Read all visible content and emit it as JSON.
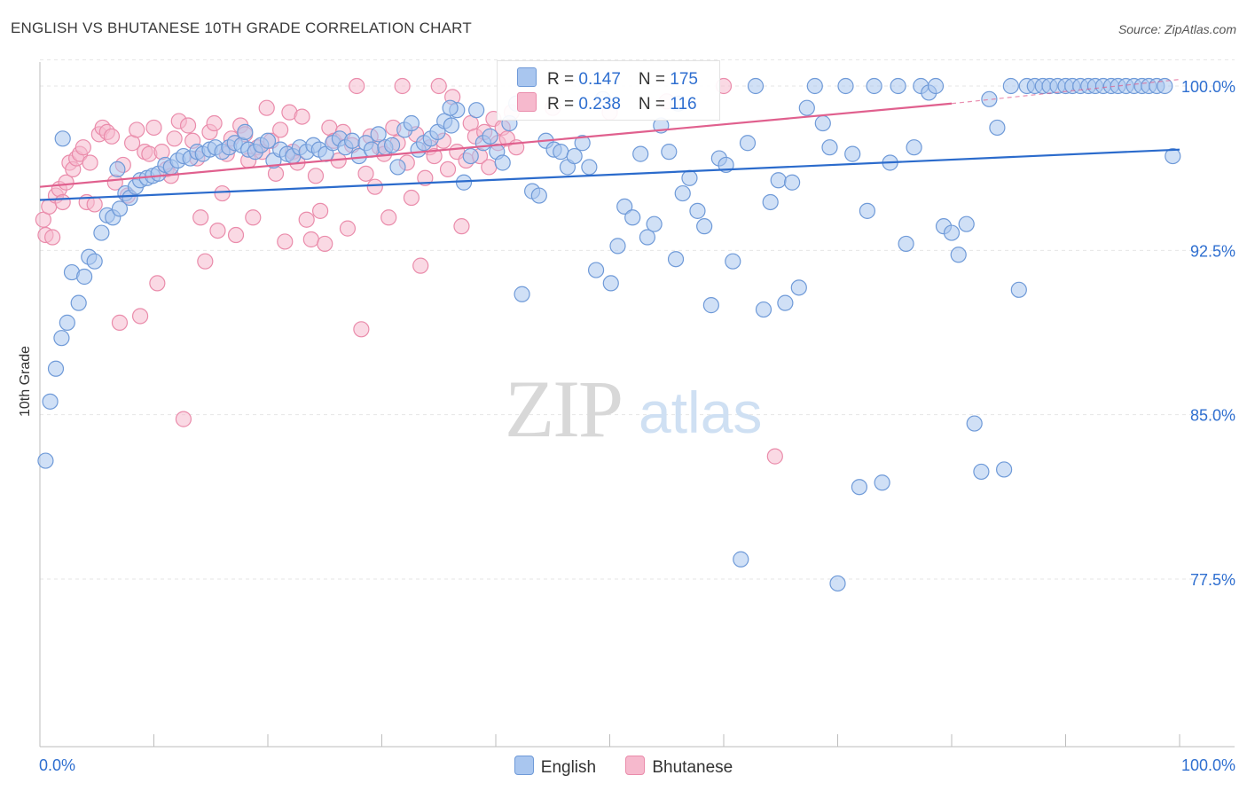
{
  "title": "ENGLISH VS BHUTANESE 10TH GRADE CORRELATION CHART",
  "source": "Source: ZipAtlas.com",
  "watermark": {
    "zip": "ZIP",
    "atlas": "atlas"
  },
  "colors": {
    "english_fill": "#a9c6ef",
    "english_stroke": "#6f9ad8",
    "english_line": "#2b6bcc",
    "bhutanese_fill": "#f6b9cd",
    "bhutanese_stroke": "#ea8cab",
    "bhutanese_line": "#e0608e",
    "axis_label": "#2f6fd0"
  },
  "legend_box": {
    "english": {
      "r_label": "R = ",
      "r_value": "0.147",
      "n_label": "N = ",
      "n_value": "175"
    },
    "bhutanese": {
      "r_label": "R = ",
      "r_value": "0.238",
      "n_label": "N = ",
      "n_value": "116"
    }
  },
  "legend": {
    "english": "English",
    "bhutanese": "Bhutanese"
  },
  "chart_data": {
    "type": "scatter",
    "title": "ENGLISH VS BHUTANESE 10TH GRADE CORRELATION CHART",
    "xlabel": "",
    "ylabel": "10th Grade",
    "xlim": [
      0,
      100
    ],
    "ylim": [
      70.0,
      101.5
    ],
    "x_tick_labels": [
      "0.0%",
      "100.0%"
    ],
    "y_ticks": [
      77.5,
      85.0,
      92.5,
      100.0
    ],
    "y_tick_labels": [
      "77.5%",
      "85.0%",
      "92.5%",
      "100.0%"
    ],
    "grid": true,
    "series": [
      {
        "name": "English",
        "r": 0.147,
        "n": 175,
        "trend": {
          "x": [
            0,
            100
          ],
          "y": [
            94.8,
            97.1
          ]
        },
        "points": [
          [
            0.5,
            82.9
          ],
          [
            0.9,
            85.6
          ],
          [
            1.4,
            87.1
          ],
          [
            1.9,
            88.5
          ],
          [
            2.4,
            89.2
          ],
          [
            2.8,
            91.5
          ],
          [
            3.4,
            90.1
          ],
          [
            3.9,
            91.3
          ],
          [
            4.3,
            92.2
          ],
          [
            4.8,
            92.0
          ],
          [
            5.4,
            93.3
          ],
          [
            5.9,
            94.1
          ],
          [
            6.4,
            94.0
          ],
          [
            7.0,
            94.4
          ],
          [
            7.5,
            95.1
          ],
          [
            7.9,
            94.9
          ],
          [
            8.4,
            95.4
          ],
          [
            8.8,
            95.7
          ],
          [
            9.4,
            95.8
          ],
          [
            9.9,
            95.9
          ],
          [
            10.4,
            96.0
          ],
          [
            11.0,
            96.4
          ],
          [
            11.5,
            96.3
          ],
          [
            12.1,
            96.6
          ],
          [
            12.6,
            96.8
          ],
          [
            13.2,
            96.7
          ],
          [
            13.8,
            97.0
          ],
          [
            14.3,
            96.9
          ],
          [
            14.9,
            97.1
          ],
          [
            15.4,
            97.2
          ],
          [
            16.0,
            97.0
          ],
          [
            16.6,
            97.2
          ],
          [
            17.1,
            97.4
          ],
          [
            17.7,
            97.3
          ],
          [
            18.3,
            97.1
          ],
          [
            18.9,
            97.0
          ],
          [
            19.4,
            97.3
          ],
          [
            20.0,
            97.5
          ],
          [
            20.5,
            96.6
          ],
          [
            21.1,
            97.1
          ],
          [
            21.7,
            96.9
          ],
          [
            22.2,
            96.8
          ],
          [
            22.8,
            97.2
          ],
          [
            23.4,
            97.0
          ],
          [
            24.0,
            97.3
          ],
          [
            24.5,
            97.1
          ],
          [
            25.1,
            96.9
          ],
          [
            25.7,
            97.4
          ],
          [
            26.3,
            97.6
          ],
          [
            26.8,
            97.2
          ],
          [
            27.4,
            97.5
          ],
          [
            28.0,
            96.8
          ],
          [
            28.6,
            97.4
          ],
          [
            29.1,
            97.1
          ],
          [
            29.7,
            97.8
          ],
          [
            30.3,
            97.2
          ],
          [
            30.9,
            97.3
          ],
          [
            31.4,
            96.3
          ],
          [
            32.0,
            98.0
          ],
          [
            32.6,
            98.3
          ],
          [
            33.2,
            97.1
          ],
          [
            33.7,
            97.4
          ],
          [
            34.3,
            97.6
          ],
          [
            34.9,
            97.9
          ],
          [
            35.5,
            98.4
          ],
          [
            36.1,
            98.2
          ],
          [
            36.6,
            98.9
          ],
          [
            37.2,
            95.6
          ],
          [
            37.8,
            96.8
          ],
          [
            38.3,
            98.9
          ],
          [
            38.9,
            97.4
          ],
          [
            39.5,
            97.7
          ],
          [
            40.1,
            97.0
          ],
          [
            40.6,
            96.5
          ],
          [
            41.2,
            98.3
          ],
          [
            41.8,
            99.2
          ],
          [
            42.3,
            90.5
          ],
          [
            43.2,
            95.2
          ],
          [
            43.8,
            95.0
          ],
          [
            44.4,
            97.5
          ],
          [
            45.1,
            97.1
          ],
          [
            45.7,
            97.0
          ],
          [
            46.3,
            96.3
          ],
          [
            46.9,
            96.8
          ],
          [
            47.6,
            97.4
          ],
          [
            48.2,
            96.3
          ],
          [
            48.8,
            91.6
          ],
          [
            49.4,
            99.4
          ],
          [
            50.1,
            91.0
          ],
          [
            50.7,
            92.7
          ],
          [
            51.3,
            94.5
          ],
          [
            52.0,
            94.0
          ],
          [
            52.7,
            96.9
          ],
          [
            53.3,
            93.1
          ],
          [
            53.9,
            93.7
          ],
          [
            54.5,
            98.2
          ],
          [
            55.2,
            97.0
          ],
          [
            55.8,
            92.1
          ],
          [
            56.4,
            95.1
          ],
          [
            57.0,
            95.8
          ],
          [
            57.7,
            94.3
          ],
          [
            58.3,
            93.6
          ],
          [
            58.9,
            90.0
          ],
          [
            59.6,
            96.7
          ],
          [
            60.2,
            96.4
          ],
          [
            60.8,
            92.0
          ],
          [
            61.5,
            78.4
          ],
          [
            62.1,
            97.4
          ],
          [
            62.8,
            100.0
          ],
          [
            63.5,
            89.8
          ],
          [
            64.1,
            94.7
          ],
          [
            64.8,
            95.7
          ],
          [
            65.4,
            90.1
          ],
          [
            66.0,
            95.6
          ],
          [
            66.6,
            90.8
          ],
          [
            67.3,
            99.0
          ],
          [
            68.0,
            100.0
          ],
          [
            68.7,
            98.3
          ],
          [
            69.3,
            97.2
          ],
          [
            70.0,
            77.3
          ],
          [
            70.7,
            100.0
          ],
          [
            71.3,
            96.9
          ],
          [
            71.9,
            81.7
          ],
          [
            72.6,
            94.3
          ],
          [
            73.2,
            100.0
          ],
          [
            73.9,
            81.9
          ],
          [
            74.6,
            96.5
          ],
          [
            75.3,
            100.0
          ],
          [
            76.0,
            92.8
          ],
          [
            76.7,
            97.2
          ],
          [
            77.3,
            100.0
          ],
          [
            78.0,
            99.7
          ],
          [
            78.6,
            100.0
          ],
          [
            79.3,
            93.6
          ],
          [
            80.0,
            93.3
          ],
          [
            80.6,
            92.3
          ],
          [
            81.3,
            93.7
          ],
          [
            82.0,
            84.6
          ],
          [
            82.6,
            82.4
          ],
          [
            83.3,
            99.4
          ],
          [
            84.0,
            98.1
          ],
          [
            84.6,
            82.5
          ],
          [
            85.2,
            100.0
          ],
          [
            85.9,
            90.7
          ],
          [
            86.6,
            100.0
          ],
          [
            87.3,
            100.0
          ],
          [
            88.0,
            100.0
          ],
          [
            88.6,
            100.0
          ],
          [
            89.3,
            100.0
          ],
          [
            90.0,
            100.0
          ],
          [
            90.6,
            100.0
          ],
          [
            91.3,
            100.0
          ],
          [
            92.0,
            100.0
          ],
          [
            92.6,
            100.0
          ],
          [
            93.3,
            100.0
          ],
          [
            94.0,
            100.0
          ],
          [
            94.6,
            100.0
          ],
          [
            95.3,
            100.0
          ],
          [
            96.0,
            100.0
          ],
          [
            96.7,
            100.0
          ],
          [
            97.3,
            100.0
          ],
          [
            98.0,
            100.0
          ],
          [
            98.7,
            100.0
          ],
          [
            99.4,
            96.8
          ],
          [
            2.0,
            97.6
          ],
          [
            6.8,
            96.2
          ],
          [
            18.0,
            97.9
          ],
          [
            36.0,
            99.0
          ],
          [
            56.0,
            99.2
          ]
        ]
      },
      {
        "name": "Bhutanese",
        "r": 0.238,
        "n": 116,
        "trend": {
          "x": [
            0,
            80
          ],
          "y": [
            95.4,
            99.2
          ]
        },
        "trend_ext": {
          "x": [
            80,
            100
          ],
          "y": [
            99.2,
            100.3
          ]
        },
        "points": [
          [
            0.3,
            93.9
          ],
          [
            0.5,
            93.2
          ],
          [
            0.8,
            94.5
          ],
          [
            1.1,
            93.1
          ],
          [
            1.4,
            95.0
          ],
          [
            1.7,
            95.3
          ],
          [
            2.0,
            94.7
          ],
          [
            2.3,
            95.6
          ],
          [
            2.6,
            96.5
          ],
          [
            2.9,
            96.2
          ],
          [
            3.2,
            96.7
          ],
          [
            3.5,
            96.9
          ],
          [
            3.8,
            97.2
          ],
          [
            4.1,
            94.7
          ],
          [
            4.4,
            96.5
          ],
          [
            4.8,
            94.6
          ],
          [
            5.2,
            97.8
          ],
          [
            5.5,
            98.1
          ],
          [
            5.9,
            97.9
          ],
          [
            6.3,
            97.7
          ],
          [
            6.6,
            95.6
          ],
          [
            7.0,
            89.2
          ],
          [
            7.3,
            96.4
          ],
          [
            7.7,
            95.0
          ],
          [
            8.1,
            97.4
          ],
          [
            8.5,
            98.0
          ],
          [
            8.8,
            89.5
          ],
          [
            9.2,
            97.0
          ],
          [
            9.6,
            96.9
          ],
          [
            10.0,
            98.1
          ],
          [
            10.3,
            91.0
          ],
          [
            10.7,
            97.0
          ],
          [
            11.1,
            96.2
          ],
          [
            11.5,
            95.9
          ],
          [
            11.8,
            97.6
          ],
          [
            12.2,
            98.4
          ],
          [
            12.6,
            84.8
          ],
          [
            13.0,
            98.2
          ],
          [
            13.4,
            97.5
          ],
          [
            13.8,
            96.7
          ],
          [
            14.1,
            94.0
          ],
          [
            14.5,
            92.0
          ],
          [
            14.9,
            97.9
          ],
          [
            15.3,
            98.3
          ],
          [
            15.6,
            93.4
          ],
          [
            16.0,
            95.1
          ],
          [
            16.4,
            96.9
          ],
          [
            16.8,
            97.6
          ],
          [
            17.2,
            93.2
          ],
          [
            17.6,
            98.2
          ],
          [
            18.0,
            97.8
          ],
          [
            18.3,
            96.6
          ],
          [
            18.7,
            94.0
          ],
          [
            19.1,
            97.2
          ],
          [
            19.5,
            97.0
          ],
          [
            19.9,
            99.0
          ],
          [
            20.3,
            97.5
          ],
          [
            20.7,
            96.0
          ],
          [
            21.1,
            98.0
          ],
          [
            21.5,
            92.9
          ],
          [
            21.9,
            98.8
          ],
          [
            22.2,
            97.0
          ],
          [
            22.6,
            96.5
          ],
          [
            23.0,
            98.6
          ],
          [
            23.4,
            93.9
          ],
          [
            23.8,
            93.0
          ],
          [
            24.2,
            95.9
          ],
          [
            24.6,
            94.3
          ],
          [
            25.0,
            92.8
          ],
          [
            25.4,
            98.1
          ],
          [
            25.8,
            97.5
          ],
          [
            26.2,
            96.6
          ],
          [
            26.6,
            97.9
          ],
          [
            27.0,
            93.5
          ],
          [
            27.4,
            97.3
          ],
          [
            27.8,
            100.0
          ],
          [
            28.2,
            88.9
          ],
          [
            28.6,
            96.0
          ],
          [
            29.0,
            97.7
          ],
          [
            29.4,
            95.4
          ],
          [
            29.8,
            97.2
          ],
          [
            30.2,
            96.9
          ],
          [
            30.6,
            94.0
          ],
          [
            31.0,
            98.1
          ],
          [
            31.4,
            97.4
          ],
          [
            31.8,
            100.0
          ],
          [
            32.2,
            96.5
          ],
          [
            32.6,
            94.9
          ],
          [
            33.0,
            97.8
          ],
          [
            33.4,
            91.8
          ],
          [
            33.8,
            95.8
          ],
          [
            34.2,
            97.2
          ],
          [
            34.6,
            96.8
          ],
          [
            35.0,
            100.0
          ],
          [
            35.4,
            97.5
          ],
          [
            35.8,
            96.2
          ],
          [
            36.2,
            99.5
          ],
          [
            36.6,
            97.0
          ],
          [
            37.0,
            93.6
          ],
          [
            37.4,
            96.6
          ],
          [
            37.8,
            98.3
          ],
          [
            38.2,
            97.7
          ],
          [
            38.6,
            96.8
          ],
          [
            39.0,
            97.9
          ],
          [
            39.4,
            96.3
          ],
          [
            39.8,
            98.5
          ],
          [
            40.2,
            97.4
          ],
          [
            40.6,
            98.1
          ],
          [
            41.0,
            97.6
          ],
          [
            41.4,
            98.8
          ],
          [
            41.8,
            97.2
          ],
          [
            45.0,
            99.0
          ],
          [
            50.0,
            98.8
          ],
          [
            55.0,
            99.3
          ],
          [
            60.0,
            100.0
          ],
          [
            64.5,
            83.1
          ]
        ]
      }
    ]
  }
}
